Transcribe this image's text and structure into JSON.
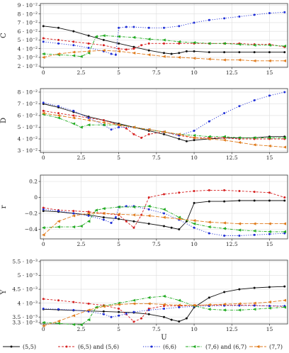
{
  "chart_data": [
    {
      "type": "line",
      "ylabel": "C",
      "xlim": [
        -0.2,
        16.2
      ],
      "ylim": [
        0.0185,
        0.092
      ],
      "yticks": [
        0.02,
        0.03,
        0.04,
        0.05,
        0.06,
        0.07,
        0.08,
        0.09
      ],
      "yticklabels": [
        "2 · 10⁻²",
        "3 · 10⁻²",
        "4 · 10⁻²",
        "5 · 10⁻²",
        "6 · 10⁻²",
        "7 · 10⁻²",
        "8 · 10⁻²",
        "9 · 10⁻²"
      ],
      "xticks": [
        0,
        2.5,
        5,
        7.5,
        10,
        12.5,
        15
      ],
      "xticklabels": [
        "0",
        "2.5",
        "5",
        "7.5",
        "10",
        "12.5",
        "15"
      ],
      "grid": true,
      "series": [
        {
          "name": "(5,5)",
          "x": [
            0,
            1,
            2,
            3,
            4,
            5,
            6,
            7,
            8,
            8.5,
            9,
            9.5,
            10,
            11,
            12,
            13,
            14,
            15,
            16
          ],
          "y": [
            0.066,
            0.064,
            0.06,
            0.055,
            0.05,
            0.046,
            0.042,
            0.038,
            0.035,
            0.034,
            0.035,
            0.037,
            0.037,
            0.036,
            0.036,
            0.036,
            0.036,
            0.036,
            0.036
          ]
        },
        {
          "name": "(6,5) and (5,6)",
          "x": [
            0,
            1,
            2,
            3,
            4,
            5,
            5.5,
            6,
            6.5,
            7,
            8,
            9,
            10,
            11,
            12,
            13,
            14,
            15,
            16
          ],
          "y": [
            0.052,
            0.05,
            0.048,
            0.046,
            0.044,
            0.04,
            0.039,
            0.04,
            0.044,
            0.046,
            0.046,
            0.046,
            0.046,
            0.046,
            0.046,
            0.046,
            0.045,
            0.045,
            0.042
          ]
        },
        {
          "name": "(6,6)",
          "x": [
            0,
            1,
            2,
            3,
            4,
            4.5,
            4.8,
            5,
            5.5,
            6,
            7,
            8,
            9,
            10,
            11,
            12,
            13,
            14,
            15,
            16
          ],
          "y": [
            0.048,
            0.046,
            0.044,
            0.041,
            0.037,
            0.034,
            0.033,
            0.064,
            0.065,
            0.065,
            0.064,
            0.064,
            0.066,
            0.07,
            0.073,
            0.075,
            0.077,
            0.079,
            0.081,
            0.082
          ]
        },
        {
          "name": "(7,6) and (6,7)",
          "x": [
            0,
            1,
            2,
            2.5,
            3,
            3.5,
            4,
            5,
            6,
            7,
            8,
            9,
            10,
            11,
            12,
            13,
            14,
            15,
            16
          ],
          "y": [
            0.034,
            0.033,
            0.032,
            0.031,
            0.035,
            0.054,
            0.055,
            0.054,
            0.053,
            0.051,
            0.05,
            0.048,
            0.047,
            0.046,
            0.046,
            0.045,
            0.044,
            0.044,
            0.043
          ]
        },
        {
          "name": "(7,7)",
          "x": [
            0,
            1,
            2,
            3,
            4,
            5,
            6,
            7,
            8,
            9,
            10,
            11,
            12,
            13,
            14,
            15,
            16
          ],
          "y": [
            0.03,
            0.034,
            0.036,
            0.037,
            0.038,
            0.037,
            0.035,
            0.033,
            0.031,
            0.03,
            0.029,
            0.028,
            0.027,
            0.027,
            0.026,
            0.026,
            0.026
          ]
        }
      ]
    },
    {
      "type": "line",
      "ylabel": "D",
      "xlim": [
        -0.2,
        16.2
      ],
      "ylim": [
        0.0285,
        0.083
      ],
      "yticks": [
        0.03,
        0.04,
        0.05,
        0.06,
        0.07,
        0.08
      ],
      "yticklabels": [
        "3 · 10⁻²",
        "4 · 10⁻²",
        "5 · 10⁻²",
        "6 · 10⁻²",
        "7 · 10⁻²",
        "8 · 10⁻²"
      ],
      "xticks": [
        0,
        2.5,
        5,
        7.5,
        10,
        12.5,
        15
      ],
      "xticklabels": [
        "0",
        "2.5",
        "5",
        "7.5",
        "10",
        "12.5",
        "15"
      ],
      "grid": true,
      "series": [
        {
          "name": "(5,5)",
          "x": [
            0,
            1,
            2,
            3,
            4,
            5,
            6,
            7,
            8,
            9,
            9.5,
            10,
            11,
            12,
            13,
            14,
            15,
            16
          ],
          "y": [
            0.07,
            0.067,
            0.063,
            0.059,
            0.056,
            0.053,
            0.05,
            0.047,
            0.044,
            0.04,
            0.038,
            0.039,
            0.04,
            0.041,
            0.041,
            0.041,
            0.042,
            0.042
          ]
        },
        {
          "name": "(6,5) and (5,6)",
          "x": [
            0,
            1,
            2,
            3,
            4,
            5,
            5.5,
            6,
            6.5,
            7,
            8,
            9,
            10,
            11,
            12,
            13,
            14,
            15,
            16
          ],
          "y": [
            0.064,
            0.062,
            0.06,
            0.058,
            0.056,
            0.052,
            0.049,
            0.044,
            0.041,
            0.044,
            0.046,
            0.043,
            0.041,
            0.041,
            0.041,
            0.04,
            0.04,
            0.04,
            0.04
          ]
        },
        {
          "name": "(6,6)",
          "x": [
            0,
            1,
            2,
            3,
            4,
            4.5,
            5,
            6,
            7,
            8,
            9,
            10,
            11,
            12,
            13,
            14,
            15,
            16
          ],
          "y": [
            0.071,
            0.068,
            0.064,
            0.058,
            0.052,
            0.048,
            0.05,
            0.05,
            0.048,
            0.046,
            0.043,
            0.047,
            0.055,
            0.062,
            0.068,
            0.073,
            0.077,
            0.08
          ]
        },
        {
          "name": "(7,6) and (6,7)",
          "x": [
            0,
            1,
            2,
            2.5,
            3,
            4,
            5,
            6,
            7,
            8,
            9,
            10,
            11,
            12,
            13,
            14,
            15,
            16
          ],
          "y": [
            0.061,
            0.058,
            0.053,
            0.05,
            0.052,
            0.052,
            0.052,
            0.05,
            0.048,
            0.046,
            0.044,
            0.043,
            0.042,
            0.042,
            0.041,
            0.041,
            0.041,
            0.041
          ]
        },
        {
          "name": "(7,7)",
          "x": [
            0,
            1,
            2,
            3,
            4,
            5,
            6,
            7,
            8,
            9,
            10,
            11,
            12,
            13,
            14,
            15,
            16
          ],
          "y": [
            0.062,
            0.06,
            0.058,
            0.056,
            0.054,
            0.052,
            0.05,
            0.048,
            0.046,
            0.044,
            0.041,
            0.04,
            0.039,
            0.037,
            0.035,
            0.034,
            0.033
          ]
        }
      ]
    },
    {
      "type": "line",
      "ylabel": "r",
      "xlim": [
        -0.2,
        16.2
      ],
      "ylim": [
        -0.52,
        0.28
      ],
      "yticks": [
        -0.4,
        -0.2,
        0,
        0.2
      ],
      "yticklabels": [
        "−0.4",
        "−0.2",
        "0",
        "0.2"
      ],
      "xticks": [
        0,
        2.5,
        5,
        7.5,
        10,
        12.5,
        15
      ],
      "xticklabels": [
        "0",
        "2.5",
        "5",
        "7.5",
        "10",
        "12.5",
        "15"
      ],
      "grid": true,
      "series": [
        {
          "name": "(5,5)",
          "x": [
            0,
            1,
            2,
            3,
            4,
            5,
            6,
            7,
            8,
            8.5,
            9,
            9.5,
            10,
            11,
            12,
            13,
            14,
            15,
            16
          ],
          "y": [
            -0.17,
            -0.18,
            -0.2,
            -0.22,
            -0.25,
            -0.27,
            -0.3,
            -0.33,
            -0.36,
            -0.38,
            -0.4,
            -0.3,
            -0.07,
            -0.05,
            -0.05,
            -0.04,
            -0.04,
            -0.04,
            -0.04
          ]
        },
        {
          "name": "(6,5) and (5,6)",
          "x": [
            0,
            1,
            2,
            3,
            4,
            5,
            5.5,
            6,
            6.5,
            7,
            8,
            9,
            10,
            11,
            12,
            13,
            14,
            15,
            16
          ],
          "y": [
            -0.13,
            -0.16,
            -0.17,
            -0.18,
            -0.2,
            -0.22,
            -0.3,
            -0.38,
            -0.22,
            0.0,
            0.04,
            0.06,
            0.08,
            0.09,
            0.09,
            0.08,
            0.07,
            0.06,
            0.0
          ]
        },
        {
          "name": "(6,6)",
          "x": [
            0,
            1,
            2,
            3,
            4,
            4.5,
            4.8,
            5,
            5.5,
            6,
            7,
            8,
            9,
            10,
            11,
            12,
            13,
            14,
            15,
            16
          ],
          "y": [
            -0.15,
            -0.17,
            -0.2,
            -0.23,
            -0.28,
            -0.32,
            -0.25,
            -0.12,
            -0.11,
            -0.11,
            -0.15,
            -0.2,
            -0.28,
            -0.38,
            -0.45,
            -0.48,
            -0.48,
            -0.47,
            -0.46,
            -0.45
          ]
        },
        {
          "name": "(7,6) and (6,7)",
          "x": [
            0,
            1,
            2,
            2.5,
            3,
            3.5,
            4,
            5,
            6,
            7,
            8,
            9,
            10,
            11,
            12,
            13,
            14,
            15,
            16
          ],
          "y": [
            -0.38,
            -0.37,
            -0.37,
            -0.36,
            -0.3,
            -0.16,
            -0.14,
            -0.12,
            -0.12,
            -0.11,
            -0.15,
            -0.25,
            -0.33,
            -0.37,
            -0.39,
            -0.41,
            -0.42,
            -0.43,
            -0.43
          ]
        },
        {
          "name": "(7,7)",
          "x": [
            0,
            1,
            2,
            3,
            4,
            5,
            6,
            7,
            8,
            9,
            10,
            11,
            12,
            13,
            14,
            15,
            16
          ],
          "y": [
            -0.47,
            -0.3,
            -0.23,
            -0.2,
            -0.2,
            -0.21,
            -0.22,
            -0.23,
            -0.25,
            -0.27,
            -0.29,
            -0.31,
            -0.32,
            -0.33,
            -0.33,
            -0.33,
            -0.33
          ]
        }
      ]
    },
    {
      "type": "line",
      "ylabel": "Y",
      "xlabel": "U",
      "xlim": [
        -0.2,
        16.2
      ],
      "ylim": [
        0.00325,
        0.00555
      ],
      "yticks": [
        0.0033,
        0.0035,
        0.004,
        0.0045,
        0.005,
        0.0055
      ],
      "yticklabels": [
        "3.3 · 10⁻³",
        "3.5 · 10⁻³",
        "4 · 10⁻³",
        "4.5 · 10⁻³",
        "5 · 10⁻³",
        "5.5 · 10⁻³"
      ],
      "xticks": [
        0,
        2.5,
        5,
        7.5,
        10,
        12.5,
        15
      ],
      "xticklabels": [
        "0",
        "2.5",
        "5",
        "7.5",
        "10",
        "12.5",
        "15"
      ],
      "grid": true,
      "series": [
        {
          "name": "(5,5)",
          "x": [
            0,
            1,
            2,
            3,
            4,
            5,
            6,
            7,
            8,
            8.5,
            9,
            9.5,
            10,
            11,
            12,
            13,
            14,
            15,
            16
          ],
          "y": [
            0.00378,
            0.00376,
            0.00374,
            0.00372,
            0.0037,
            0.00368,
            0.00366,
            0.0036,
            0.0035,
            0.0034,
            0.00334,
            0.00345,
            0.00385,
            0.0042,
            0.0044,
            0.0045,
            0.00455,
            0.00458,
            0.0046
          ]
        },
        {
          "name": "(6,5) and (5,6)",
          "x": [
            0,
            1,
            2,
            3,
            4,
            5,
            5.5,
            6,
            6.5,
            7,
            8,
            9,
            10,
            11,
            12,
            13,
            14,
            15,
            16
          ],
          "y": [
            0.00415,
            0.0041,
            0.00404,
            0.00398,
            0.00392,
            0.0038,
            0.0036,
            0.00333,
            0.00345,
            0.0038,
            0.0039,
            0.0039,
            0.00392,
            0.00393,
            0.00393,
            0.00393,
            0.00392,
            0.0039,
            0.00388
          ]
        },
        {
          "name": "(6,6)",
          "x": [
            0,
            1,
            2,
            3,
            4,
            4.5,
            5,
            5.5,
            6,
            7,
            8,
            9,
            10,
            11,
            12,
            13,
            14,
            15,
            16
          ],
          "y": [
            0.0038,
            0.00378,
            0.00375,
            0.0037,
            0.0036,
            0.0035,
            0.00355,
            0.00362,
            0.00368,
            0.00375,
            0.0038,
            0.00385,
            0.00388,
            0.0039,
            0.00391,
            0.00391,
            0.00391,
            0.0039,
            0.0039
          ]
        },
        {
          "name": "(7,6) and (6,7)",
          "x": [
            0,
            1,
            2,
            2.5,
            3,
            3.5,
            4,
            5,
            6,
            7,
            8,
            9,
            10,
            11,
            12,
            13,
            14,
            15,
            16
          ],
          "y": [
            0.0033,
            0.00327,
            0.00323,
            0.00322,
            0.0034,
            0.00385,
            0.0039,
            0.004,
            0.0041,
            0.0042,
            0.00425,
            0.0041,
            0.0039,
            0.00378,
            0.00375,
            0.00375,
            0.00378,
            0.00382,
            0.00385
          ]
        },
        {
          "name": "(7,7)",
          "x": [
            0,
            1,
            2,
            3,
            4,
            5,
            6,
            7,
            8,
            9,
            10,
            11,
            12,
            13,
            14,
            15,
            16
          ],
          "y": [
            0.00318,
            0.00335,
            0.00355,
            0.00375,
            0.00388,
            0.00395,
            0.00398,
            0.00398,
            0.00395,
            0.00393,
            0.00392,
            0.00394,
            0.00396,
            0.00398,
            0.004,
            0.00404,
            0.0041
          ]
        }
      ]
    }
  ],
  "legend": {
    "placement": "bottom",
    "entries": [
      "(5,5)",
      "(6,5) and (5,6)",
      "(6,6)",
      "(7,6) and (6,7)",
      "(7,7)"
    ]
  },
  "colors": {
    "(5,5)": "#111111",
    "(6,5) and (5,6)": "#d62020",
    "(6,6)": "#1f2fd6",
    "(7,6) and (6,7)": "#1faa1f",
    "(7,7)": "#e07a1a",
    "grid": "#dddddd",
    "axis": "#333333"
  }
}
